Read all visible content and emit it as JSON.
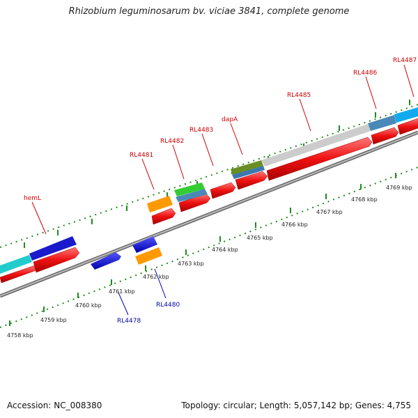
{
  "title": "Rhizobium leguminosarum bv. viciae 3841, complete genome",
  "accession": "Accession: NC_008380",
  "topology": "Topology: circular; Length: 5,057,142 bp; Genes: 4,755",
  "colors": {
    "forward_cds": "#ee1111",
    "reverse_cds": "#1111cc",
    "feature_label_top": "#cc0000",
    "feature_label_bottom": "#0000aa",
    "backbone": "#888888",
    "tick": "#228822"
  },
  "kbp_ticks": [
    "4758 kbp",
    "4759 kbp",
    "4760 kbp",
    "4761 kbp",
    "4762 kbp",
    "4763 kbp",
    "4764 kbp",
    "4765 kbp",
    "4766 kbp",
    "4767 kbp",
    "4768 kbp",
    "4769 kbp"
  ],
  "gene_labels_top": [
    "hemL",
    "RL4481",
    "RL4482",
    "RL4483",
    "dapA",
    "RL4485",
    "RL4486",
    "RL4487"
  ],
  "gene_labels_bottom": [
    "RL4478",
    "RL4480"
  ]
}
